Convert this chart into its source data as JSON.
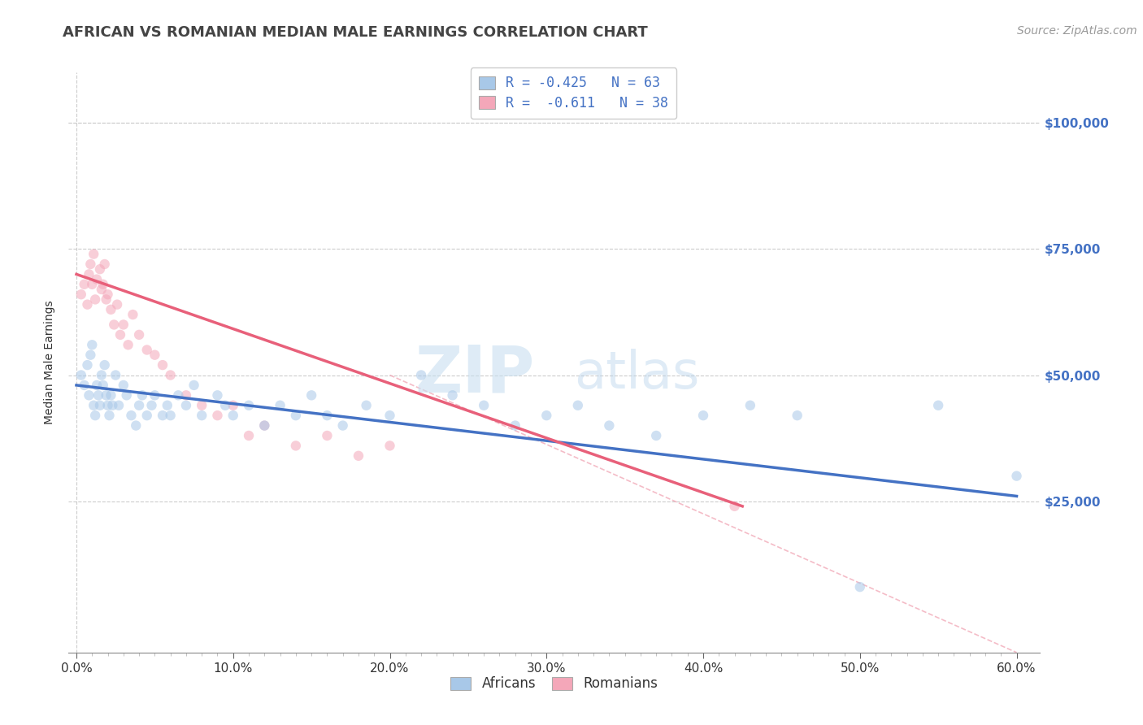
{
  "title": "AFRICAN VS ROMANIAN MEDIAN MALE EARNINGS CORRELATION CHART",
  "source_text": "Source: ZipAtlas.com",
  "ylabel": "Median Male Earnings",
  "xlim": [
    -0.005,
    0.615
  ],
  "ylim": [
    -5000,
    110000
  ],
  "xtick_labels": [
    "0.0%",
    "",
    "",
    "",
    "",
    "",
    "",
    "",
    "",
    "",
    "10.0%",
    "",
    "",
    "",
    "",
    "",
    "",
    "",
    "",
    "",
    "20.0%",
    "",
    "",
    "",
    "",
    "",
    "",
    "",
    "",
    "",
    "30.0%",
    "",
    "",
    "",
    "",
    "",
    "",
    "",
    "",
    "",
    "40.0%",
    "",
    "",
    "",
    "",
    "",
    "",
    "",
    "",
    "",
    "50.0%",
    "",
    "",
    "",
    "",
    "",
    "",
    "",
    "",
    "",
    "60.0%"
  ],
  "xtick_vals": [
    0.0,
    0.01,
    0.02,
    0.03,
    0.04,
    0.05,
    0.06,
    0.07,
    0.08,
    0.09,
    0.1,
    0.11,
    0.12,
    0.13,
    0.14,
    0.15,
    0.16,
    0.17,
    0.18,
    0.19,
    0.2,
    0.21,
    0.22,
    0.23,
    0.24,
    0.25,
    0.26,
    0.27,
    0.28,
    0.29,
    0.3,
    0.31,
    0.32,
    0.33,
    0.34,
    0.35,
    0.36,
    0.37,
    0.38,
    0.39,
    0.4,
    0.41,
    0.42,
    0.43,
    0.44,
    0.45,
    0.46,
    0.47,
    0.48,
    0.49,
    0.5,
    0.51,
    0.52,
    0.53,
    0.54,
    0.55,
    0.56,
    0.57,
    0.58,
    0.59,
    0.6
  ],
  "ytick_vals": [
    25000,
    50000,
    75000,
    100000
  ],
  "ytick_labels": [
    "$25,000",
    "$50,000",
    "$75,000",
    "$100,000"
  ],
  "african_color": "#a8c8e8",
  "romanian_color": "#f4a7b9",
  "african_line_color": "#4472c4",
  "romanian_line_color": "#e8607a",
  "romanian_dash_color": "#f0a0b0",
  "legend_line1": "R = -0.425   N = 63",
  "legend_line2": "R =  -0.611   N = 38",
  "legend_label_african": "Africans",
  "legend_label_romanian": "Romanians",
  "watermark_zip": "ZIP",
  "watermark_atlas": "atlas",
  "background_color": "#ffffff",
  "grid_color": "#cccccc",
  "title_color": "#444444",
  "axis_label_color": "#4472c4",
  "title_fontsize": 13,
  "axis_fontsize": 10,
  "tick_fontsize": 11,
  "source_fontsize": 10,
  "legend_fontsize": 12,
  "dot_size": 80,
  "dot_alpha": 0.55,
  "line_width": 2.5,
  "african_x": [
    0.003,
    0.005,
    0.007,
    0.008,
    0.009,
    0.01,
    0.011,
    0.012,
    0.013,
    0.014,
    0.015,
    0.016,
    0.017,
    0.018,
    0.019,
    0.02,
    0.021,
    0.022,
    0.023,
    0.025,
    0.027,
    0.03,
    0.032,
    0.035,
    0.038,
    0.04,
    0.042,
    0.045,
    0.048,
    0.05,
    0.055,
    0.058,
    0.06,
    0.065,
    0.07,
    0.075,
    0.08,
    0.09,
    0.095,
    0.1,
    0.11,
    0.12,
    0.13,
    0.14,
    0.15,
    0.16,
    0.17,
    0.185,
    0.2,
    0.22,
    0.24,
    0.26,
    0.28,
    0.3,
    0.32,
    0.34,
    0.37,
    0.4,
    0.43,
    0.46,
    0.5,
    0.55,
    0.6
  ],
  "african_y": [
    50000,
    48000,
    52000,
    46000,
    54000,
    56000,
    44000,
    42000,
    48000,
    46000,
    44000,
    50000,
    48000,
    52000,
    46000,
    44000,
    42000,
    46000,
    44000,
    50000,
    44000,
    48000,
    46000,
    42000,
    40000,
    44000,
    46000,
    42000,
    44000,
    46000,
    42000,
    44000,
    42000,
    46000,
    44000,
    48000,
    42000,
    46000,
    44000,
    42000,
    44000,
    40000,
    44000,
    42000,
    46000,
    42000,
    40000,
    44000,
    42000,
    50000,
    46000,
    44000,
    40000,
    42000,
    44000,
    40000,
    38000,
    42000,
    44000,
    42000,
    8000,
    44000,
    30000
  ],
  "romanian_x": [
    0.003,
    0.005,
    0.007,
    0.008,
    0.009,
    0.01,
    0.011,
    0.012,
    0.013,
    0.015,
    0.016,
    0.017,
    0.018,
    0.019,
    0.02,
    0.022,
    0.024,
    0.026,
    0.028,
    0.03,
    0.033,
    0.036,
    0.04,
    0.045,
    0.05,
    0.055,
    0.06,
    0.07,
    0.08,
    0.09,
    0.1,
    0.11,
    0.12,
    0.14,
    0.16,
    0.18,
    0.2,
    0.42
  ],
  "romanian_y": [
    66000,
    68000,
    64000,
    70000,
    72000,
    68000,
    74000,
    65000,
    69000,
    71000,
    67000,
    68000,
    72000,
    65000,
    66000,
    63000,
    60000,
    64000,
    58000,
    60000,
    56000,
    62000,
    58000,
    55000,
    54000,
    52000,
    50000,
    46000,
    44000,
    42000,
    44000,
    38000,
    40000,
    36000,
    38000,
    34000,
    36000,
    24000
  ],
  "african_trend_x0": 0.0,
  "african_trend_y0": 48000,
  "african_trend_x1": 0.6,
  "african_trend_y1": 26000,
  "romanian_trend_x0": 0.0,
  "romanian_trend_y0": 70000,
  "romanian_trend_x1": 0.425,
  "romanian_trend_y1": 24000,
  "dash_trend_x0": 0.2,
  "dash_trend_y0": 50000,
  "dash_trend_x1": 0.6,
  "dash_trend_y1": -5000
}
